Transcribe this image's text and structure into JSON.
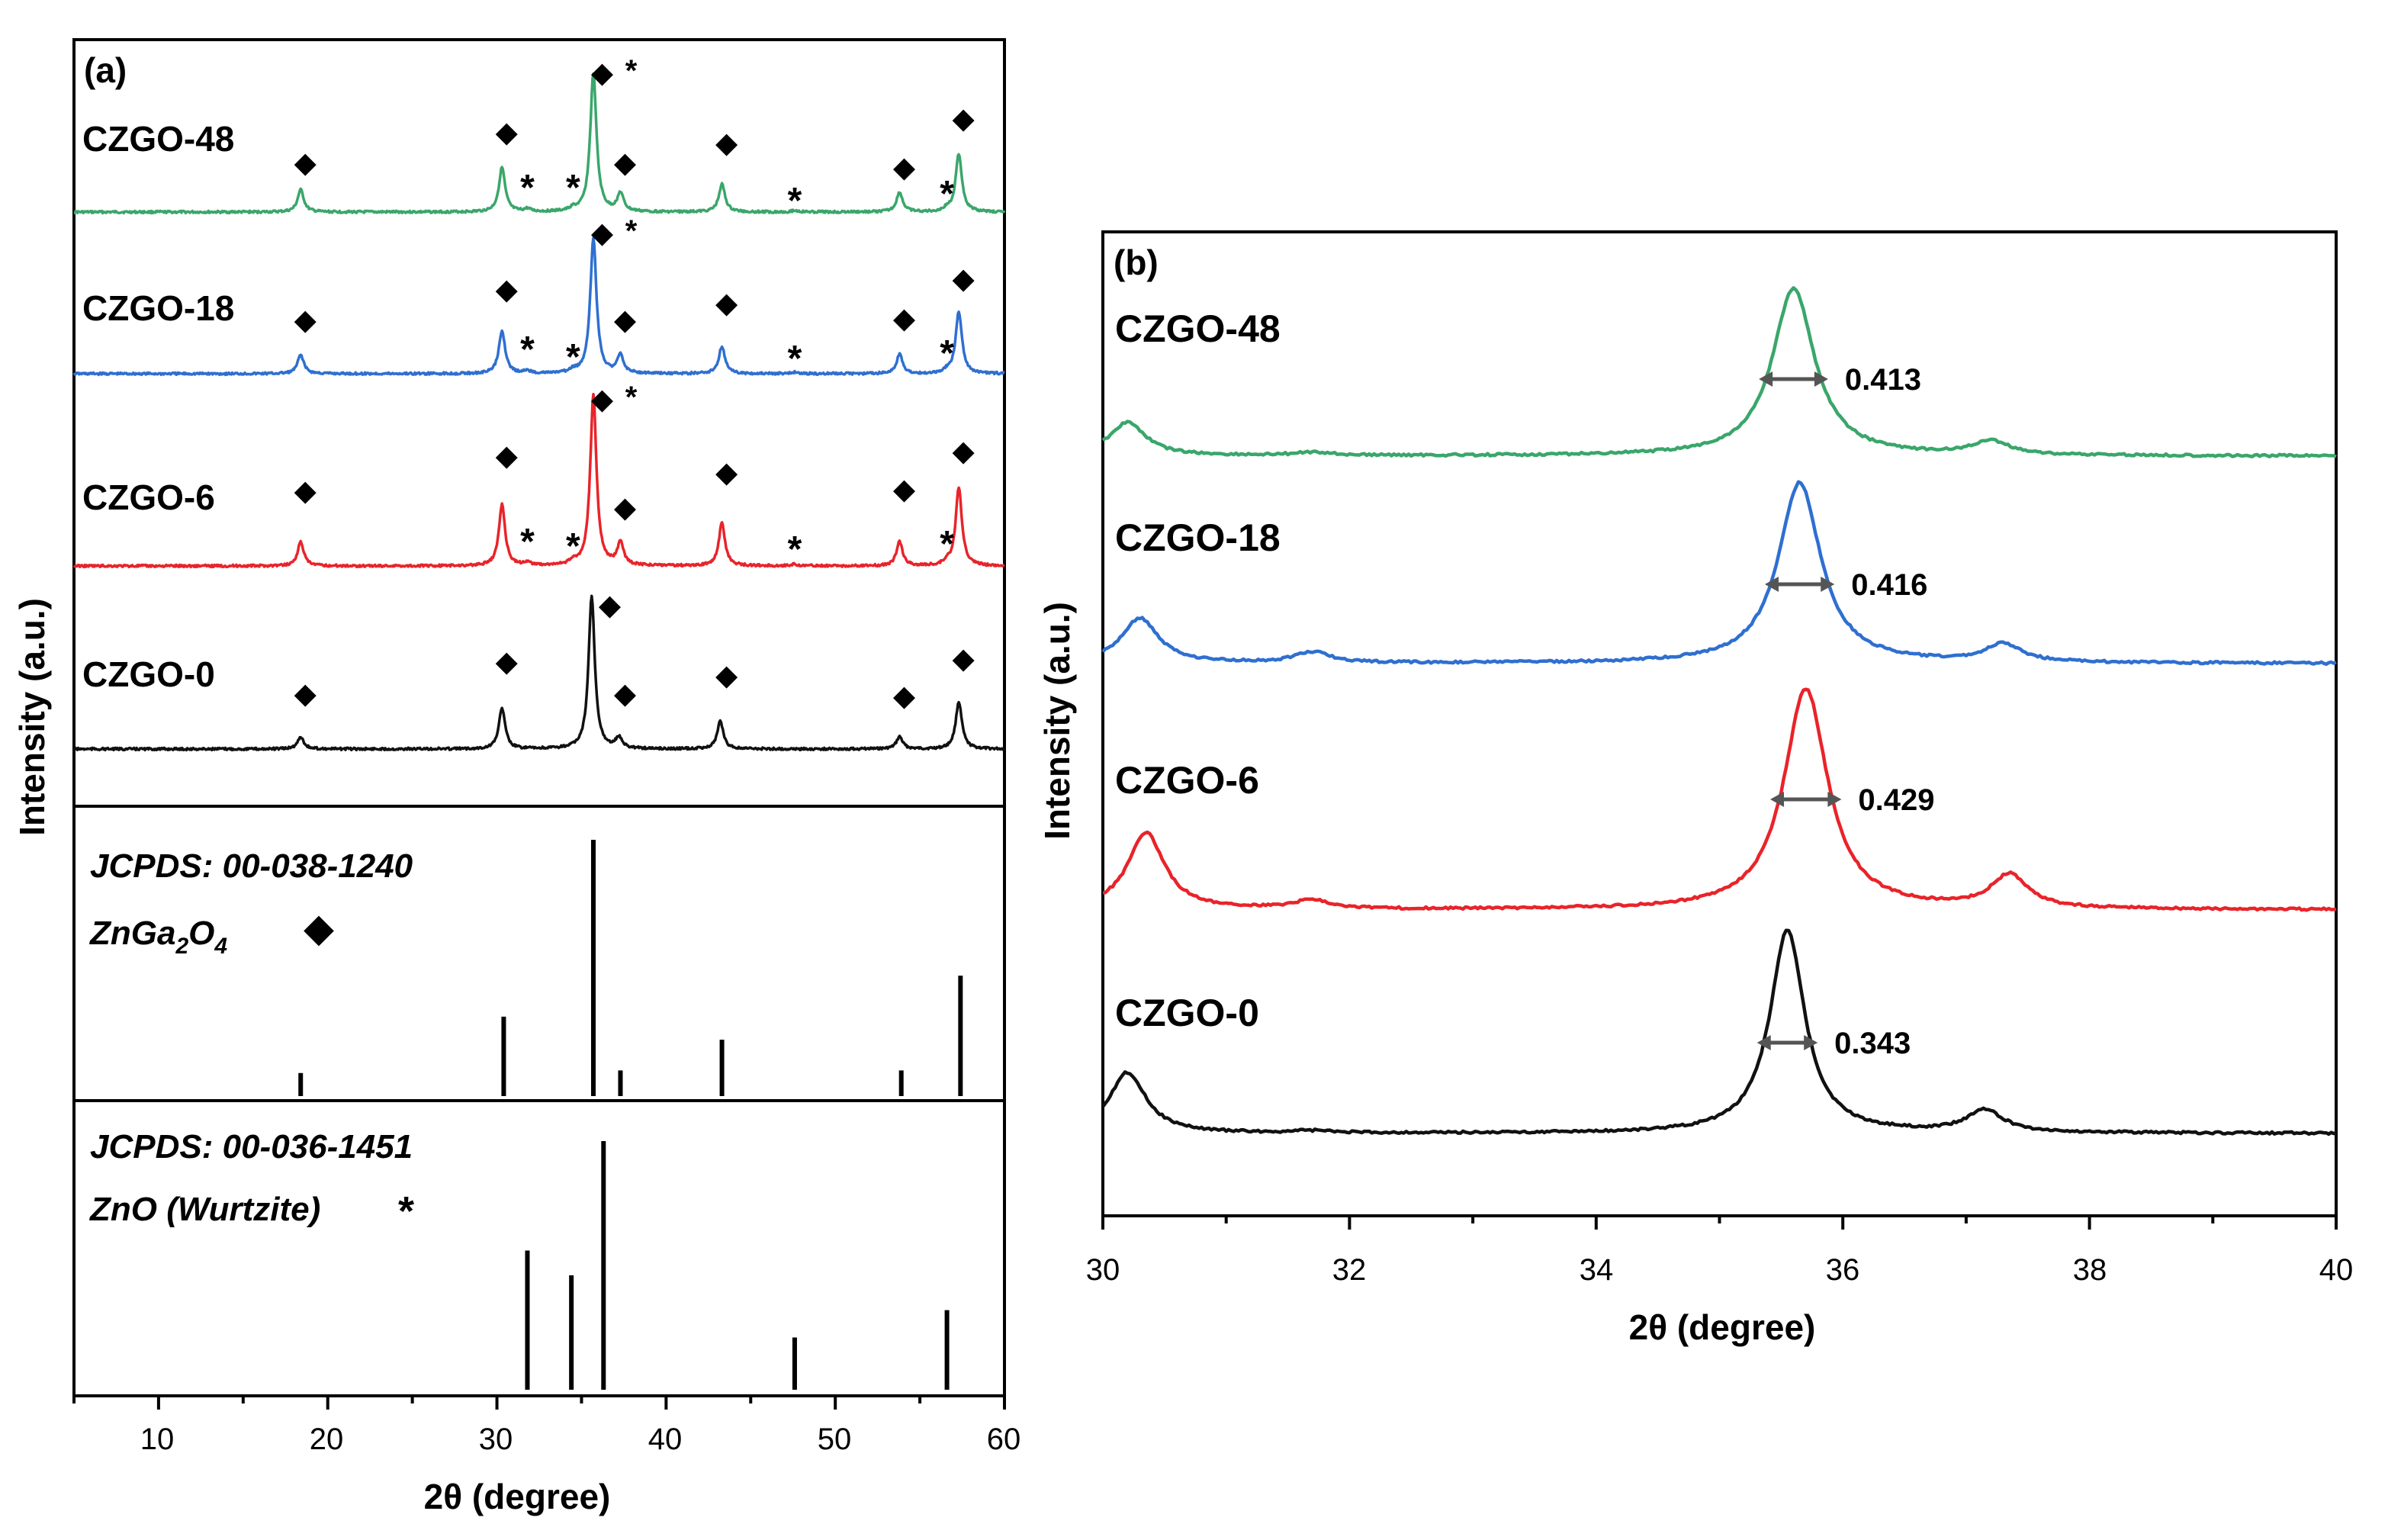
{
  "colors": {
    "CZGO-48": "#3aa66b",
    "CZGO-18": "#2f6fd0",
    "CZGO-6": "#e8242a",
    "CZGO-0": "#111111",
    "arrow": "#555555"
  },
  "chart_data": [
    {
      "id": "a",
      "type": "line",
      "panel_label": "(a)",
      "xlabel": "2θ (degree)",
      "ylabel": "Intensity (a.u.)",
      "xlim": [
        5,
        60
      ],
      "xticks": [
        10,
        20,
        30,
        40,
        50,
        60
      ],
      "grid": false,
      "series": [
        {
          "name": "CZGO-48",
          "color": "#3aa66b",
          "peaks": [
            [
              18.4,
              0.16
            ],
            [
              30.3,
              0.32
            ],
            [
              31.8,
              0.02
            ],
            [
              34.5,
              0.02
            ],
            [
              35.7,
              1.0
            ],
            [
              37.3,
              0.13
            ],
            [
              43.3,
              0.2
            ],
            [
              47.6,
              0.01
            ],
            [
              53.8,
              0.14
            ],
            [
              56.6,
              0.02
            ],
            [
              57.3,
              0.42
            ]
          ],
          "markers": [
            {
              "x": 18.4,
              "sym": "◆"
            },
            {
              "x": 30.3,
              "sym": "◆"
            },
            {
              "x": 31.8,
              "sym": "*"
            },
            {
              "x": 34.5,
              "sym": "*"
            },
            {
              "x": 36.4,
              "sym": "◆*"
            },
            {
              "x": 37.3,
              "sym": "◆"
            },
            {
              "x": 43.3,
              "sym": "◆"
            },
            {
              "x": 47.6,
              "sym": "*"
            },
            {
              "x": 53.8,
              "sym": "◆"
            },
            {
              "x": 56.6,
              "sym": "*"
            },
            {
              "x": 57.3,
              "sym": "◆"
            }
          ]
        },
        {
          "name": "CZGO-18",
          "color": "#2f6fd0",
          "peaks": [
            [
              18.4,
              0.14
            ],
            [
              30.3,
              0.32
            ],
            [
              31.8,
              0.02
            ],
            [
              34.5,
              0.02
            ],
            [
              35.7,
              1.0
            ],
            [
              37.3,
              0.13
            ],
            [
              43.3,
              0.2
            ],
            [
              47.6,
              0.01
            ],
            [
              53.8,
              0.14
            ],
            [
              56.6,
              0.02
            ],
            [
              57.3,
              0.46
            ]
          ],
          "markers": [
            {
              "x": 18.4,
              "sym": "◆"
            },
            {
              "x": 30.3,
              "sym": "◆"
            },
            {
              "x": 31.8,
              "sym": "*"
            },
            {
              "x": 34.5,
              "sym": "*"
            },
            {
              "x": 36.4,
              "sym": "◆*"
            },
            {
              "x": 37.3,
              "sym": "◆"
            },
            {
              "x": 43.3,
              "sym": "◆"
            },
            {
              "x": 47.6,
              "sym": "*"
            },
            {
              "x": 53.8,
              "sym": "◆"
            },
            {
              "x": 56.6,
              "sym": "*"
            },
            {
              "x": 57.3,
              "sym": "◆"
            }
          ]
        },
        {
          "name": "CZGO-6",
          "color": "#e8242a",
          "peaks": [
            [
              18.4,
              0.14
            ],
            [
              30.3,
              0.36
            ],
            [
              31.8,
              0.02
            ],
            [
              34.5,
              0.02
            ],
            [
              35.7,
              1.0
            ],
            [
              37.3,
              0.13
            ],
            [
              43.3,
              0.25
            ],
            [
              47.6,
              0.01
            ],
            [
              53.8,
              0.14
            ],
            [
              56.6,
              0.02
            ],
            [
              57.3,
              0.46
            ]
          ],
          "markers": [
            {
              "x": 18.4,
              "sym": "◆"
            },
            {
              "x": 30.3,
              "sym": "◆"
            },
            {
              "x": 31.8,
              "sym": "*"
            },
            {
              "x": 34.5,
              "sym": "*"
            },
            {
              "x": 36.4,
              "sym": "◆*"
            },
            {
              "x": 37.3,
              "sym": "◆"
            },
            {
              "x": 43.3,
              "sym": "◆"
            },
            {
              "x": 47.6,
              "sym": "*"
            },
            {
              "x": 53.8,
              "sym": "◆"
            },
            {
              "x": 56.6,
              "sym": "*"
            },
            {
              "x": 57.3,
              "sym": "◆"
            }
          ]
        },
        {
          "name": "CZGO-0",
          "color": "#111111",
          "peaks": [
            [
              18.4,
              0.08
            ],
            [
              30.3,
              0.27
            ],
            [
              35.6,
              1.0
            ],
            [
              37.2,
              0.07
            ],
            [
              43.2,
              0.18
            ],
            [
              53.8,
              0.08
            ],
            [
              57.3,
              0.31
            ]
          ],
          "markers": [
            {
              "x": 18.4,
              "sym": "◆"
            },
            {
              "x": 30.3,
              "sym": "◆"
            },
            {
              "x": 36.4,
              "sym": "◆"
            },
            {
              "x": 37.3,
              "sym": "◆"
            },
            {
              "x": 43.3,
              "sym": "◆"
            },
            {
              "x": 53.8,
              "sym": "◆"
            },
            {
              "x": 57.3,
              "sym": "◆"
            }
          ]
        }
      ],
      "references": [
        {
          "title": "JCPDS: 00-038-1240",
          "phase_label": "ZnGa",
          "phase_sub1": "2",
          "phase_mid": "O",
          "phase_sub2": "4",
          "symbol": "◆",
          "lines": [
            [
              18.4,
              0.09
            ],
            [
              30.4,
              0.31
            ],
            [
              35.7,
              1.0
            ],
            [
              37.3,
              0.1
            ],
            [
              43.3,
              0.22
            ],
            [
              53.9,
              0.1
            ],
            [
              57.4,
              0.47
            ]
          ]
        },
        {
          "title": "JCPDS: 00-036-1451",
          "phase_text": "ZnO (Wurtzite)",
          "symbol": "*",
          "lines": [
            [
              31.8,
              0.56
            ],
            [
              34.4,
              0.46
            ],
            [
              36.3,
              1.0
            ],
            [
              47.6,
              0.21
            ],
            [
              56.6,
              0.32
            ]
          ]
        }
      ]
    },
    {
      "id": "b",
      "type": "line",
      "panel_label": "(b)",
      "xlabel": "2θ (degree)",
      "ylabel": "Intensity (a.u.)",
      "xlim": [
        30,
        40
      ],
      "xticks": [
        30,
        32,
        34,
        36,
        38,
        40
      ],
      "grid": false,
      "series": [
        {
          "name": "CZGO-48",
          "color": "#3aa66b",
          "fwhm": "0.413",
          "fwhm_center": 35.6,
          "fwhm_width": 0.413,
          "peaks": [
            [
              30.2,
              0.2
            ],
            [
              31.7,
              0.02
            ],
            [
              35.6,
              1.0
            ],
            [
              37.2,
              0.08
            ]
          ]
        },
        {
          "name": "CZGO-18",
          "color": "#2f6fd0",
          "fwhm": "0.416",
          "fwhm_center": 35.65,
          "fwhm_width": 0.416,
          "peaks": [
            [
              30.3,
              0.25
            ],
            [
              31.7,
              0.06
            ],
            [
              35.65,
              1.0
            ],
            [
              37.3,
              0.1
            ]
          ]
        },
        {
          "name": "CZGO-6",
          "color": "#e8242a",
          "fwhm": "0.429",
          "fwhm_center": 35.7,
          "fwhm_width": 0.429,
          "peaks": [
            [
              30.35,
              0.35
            ],
            [
              31.7,
              0.04
            ],
            [
              35.7,
              1.0
            ],
            [
              37.35,
              0.15
            ]
          ]
        },
        {
          "name": "CZGO-0",
          "color": "#111111",
          "fwhm": "0.343",
          "fwhm_center": 35.55,
          "fwhm_width": 0.343,
          "peaks": [
            [
              30.2,
              0.3
            ],
            [
              31.7,
              0.01
            ],
            [
              35.55,
              1.0
            ],
            [
              37.15,
              0.11
            ]
          ]
        }
      ]
    }
  ]
}
